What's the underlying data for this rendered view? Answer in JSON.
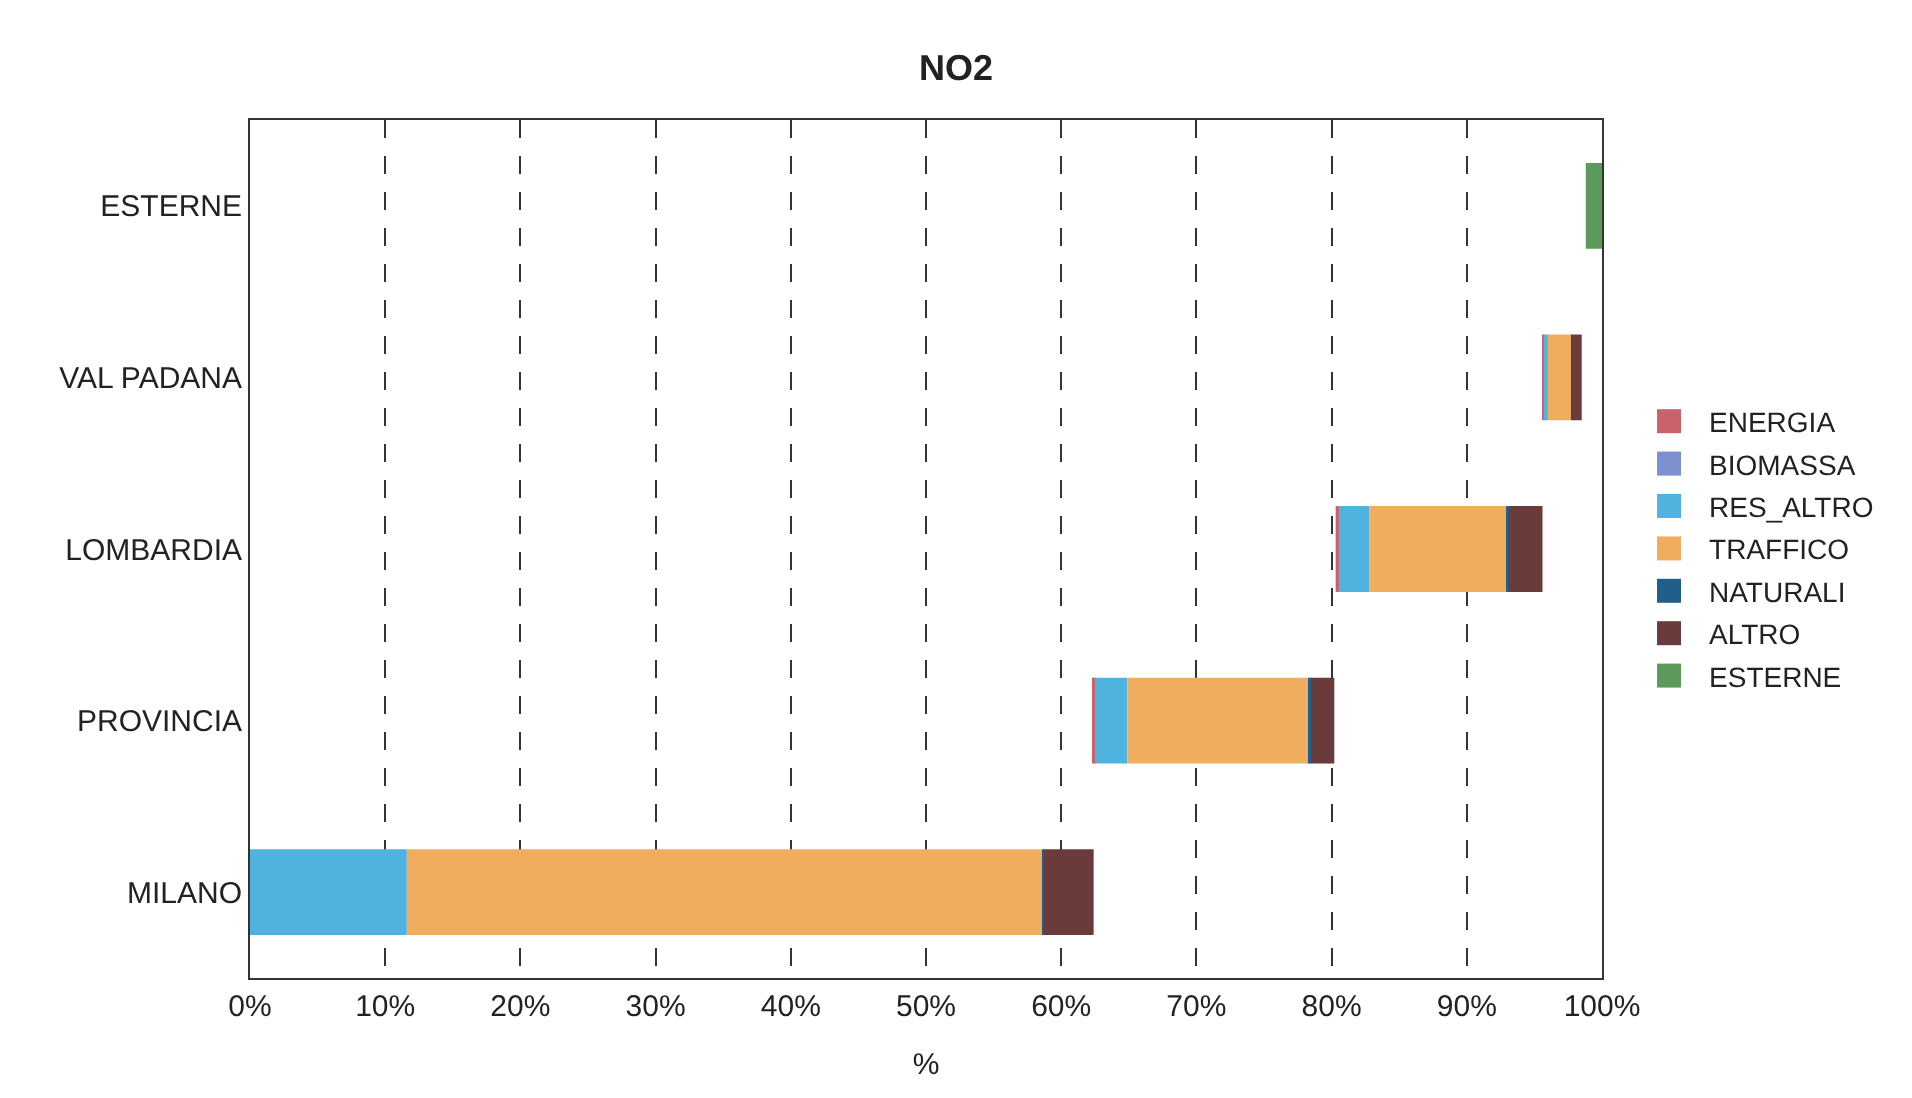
{
  "chart_data": {
    "type": "bar",
    "orientation": "horizontal",
    "title": "NO2",
    "xlabel": "%",
    "categories": [
      "ESTERNE",
      "VAL PADANA",
      "LOMBARDIA",
      "PROVINCIA",
      "MILANO"
    ],
    "series": [
      {
        "name": "ENERGIA",
        "color": "#c9626b",
        "values": [
          null,
          0.1,
          0.3,
          0.1,
          null
        ],
        "base": [
          null,
          95.6,
          80.3,
          62.4,
          null
        ]
      },
      {
        "name": "BIOMASSA",
        "color": "#7e8fd0",
        "values": [
          null,
          null,
          null,
          null,
          null
        ]
      },
      {
        "name": "RES_ALTRO",
        "color": "#4fb3e0",
        "values": [
          null,
          0.3,
          2.2,
          2.4,
          11.6
        ],
        "base": [
          null,
          95.7,
          80.6,
          62.5,
          0
        ]
      },
      {
        "name": "TRAFFICO",
        "color": "#f0ad5e",
        "values": [
          null,
          1.7,
          10.2,
          13.5,
          47.0
        ],
        "base": [
          null,
          96.0,
          82.8,
          64.9,
          11.6
        ]
      },
      {
        "name": "NATURALI",
        "color": "#1f5f8b",
        "values": [
          null,
          null,
          0.1,
          0.1,
          0.1
        ],
        "base": [
          null,
          null,
          93.0,
          78.4,
          58.6
        ]
      },
      {
        "name": "ALTRO",
        "color": "#6b3a3a",
        "values": [
          null,
          0.8,
          2.5,
          1.7,
          3.7
        ],
        "base": [
          null,
          97.7,
          93.1,
          78.5,
          58.7
        ]
      },
      {
        "name": "ESTERNE",
        "color": "#5b9a5b",
        "values": [
          1.2,
          null,
          null,
          null,
          null
        ],
        "base": [
          98.8,
          null,
          null,
          null,
          null
        ]
      }
    ],
    "xlim": [
      0,
      100
    ],
    "xticks": [
      {
        "value": 0,
        "label": "0%"
      },
      {
        "value": 10,
        "label": "10%"
      },
      {
        "value": 20,
        "label": "20%"
      },
      {
        "value": 30,
        "label": "30%"
      },
      {
        "value": 40,
        "label": "40%"
      },
      {
        "value": 50,
        "label": "50%"
      },
      {
        "value": 60,
        "label": "60%"
      },
      {
        "value": 70,
        "label": "70%"
      },
      {
        "value": 80,
        "label": "80%"
      },
      {
        "value": 90,
        "label": "90%"
      },
      {
        "value": 100,
        "label": "100%"
      }
    ],
    "grid": "x",
    "line_style": "dashed",
    "legend": "right"
  }
}
